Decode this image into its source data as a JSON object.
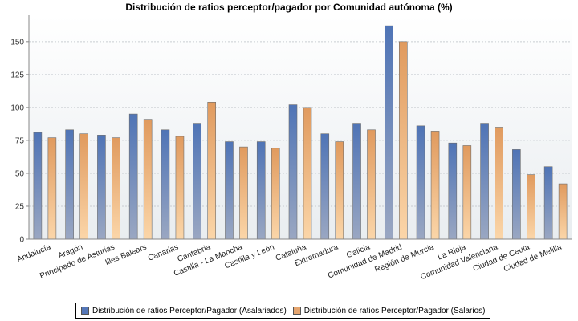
{
  "chart_data": {
    "type": "bar",
    "title": "Distribución de ratios perceptor/pagador por Comunidad autónoma (%)",
    "xlabel": "",
    "ylabel": "",
    "ylim": [
      0,
      170
    ],
    "yticks": [
      0,
      25,
      50,
      75,
      100,
      125,
      150
    ],
    "grid": true,
    "legend_position": "bottom",
    "categories": [
      "Andalucía",
      "Aragón",
      "Principado de Asturias",
      "Illes Balears",
      "Canarias",
      "Cantabria",
      "Castilla - La Mancha",
      "Castilla y León",
      "Cataluña",
      "Extremadura",
      "Galicia",
      "Comunidad de Madrid",
      "Región de Murcia",
      "La Rioja",
      "Comunidad Valenciana",
      "Ciudad de Ceuta",
      "Ciudad de Melilla"
    ],
    "series": [
      {
        "name": "Distribución de ratios Perceptor/Pagador (Asalariados)",
        "color": "#5577b8",
        "values": [
          81,
          83,
          79,
          95,
          83,
          88,
          74,
          74,
          102,
          80,
          88,
          162,
          86,
          73,
          88,
          68,
          55
        ]
      },
      {
        "name": "Distribución de ratios Perceptor/Pagador (Salarios)",
        "color": "#e5a56f",
        "values": [
          77,
          80,
          77,
          91,
          78,
          104,
          70,
          69,
          100,
          74,
          83,
          150,
          82,
          71,
          85,
          49,
          42
        ]
      }
    ]
  }
}
